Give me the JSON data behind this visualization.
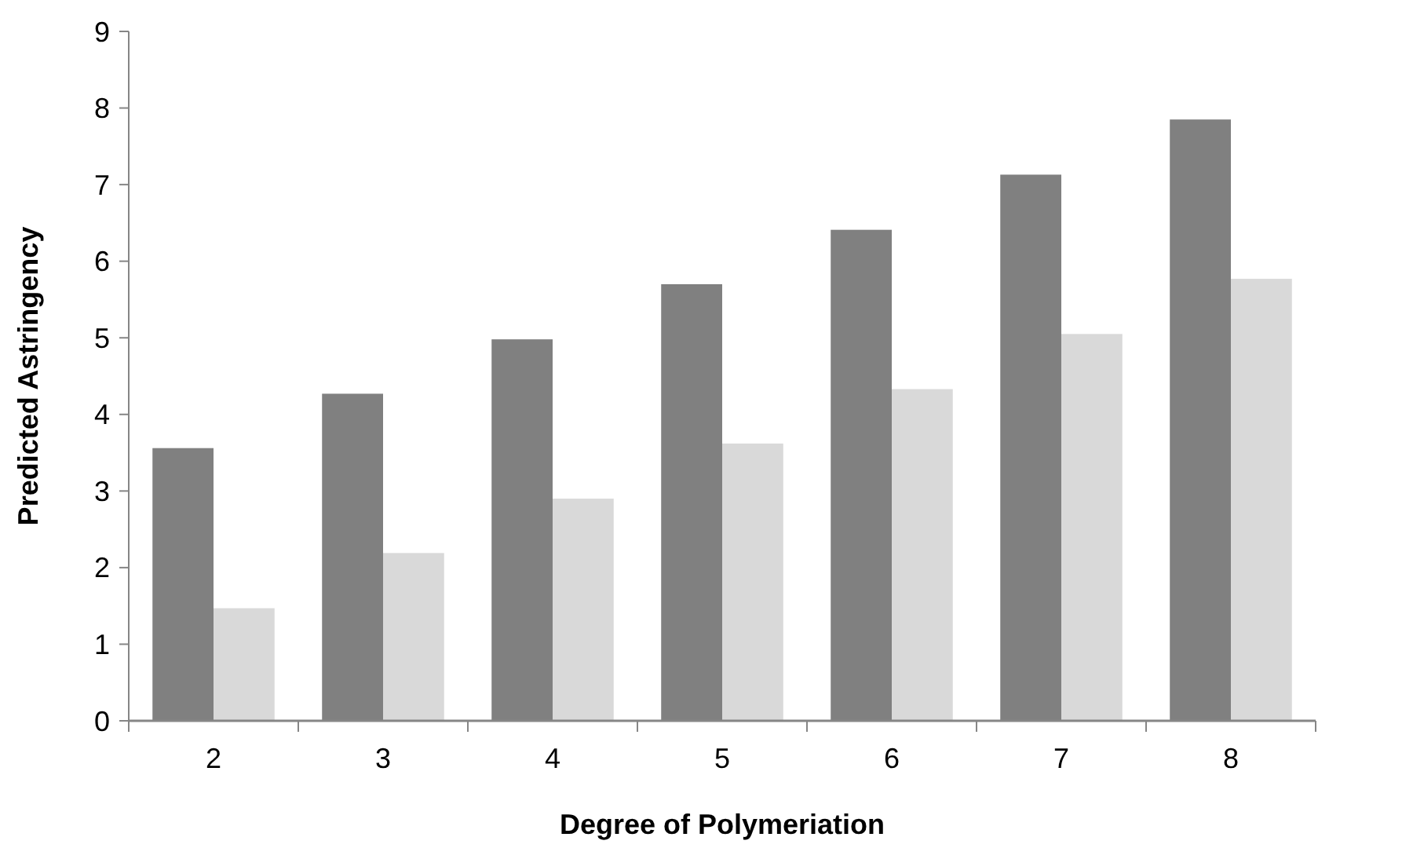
{
  "chart_data": {
    "type": "bar",
    "xlabel": "Degree of Polymeriation",
    "ylabel": "Predicted Astringency",
    "categories": [
      "2",
      "3",
      "4",
      "5",
      "6",
      "7",
      "8"
    ],
    "series": [
      {
        "color": "#808080",
        "values": [
          3.56,
          4.27,
          4.98,
          5.7,
          6.41,
          7.13,
          7.85
        ]
      },
      {
        "color": "#d9d9d9",
        "values": [
          1.47,
          2.19,
          2.9,
          3.62,
          4.33,
          5.05,
          5.77
        ]
      }
    ],
    "ylim": [
      0,
      9
    ],
    "yticks": [
      0,
      1,
      2,
      3,
      4,
      5,
      6,
      7,
      8,
      9
    ],
    "grid": false
  }
}
